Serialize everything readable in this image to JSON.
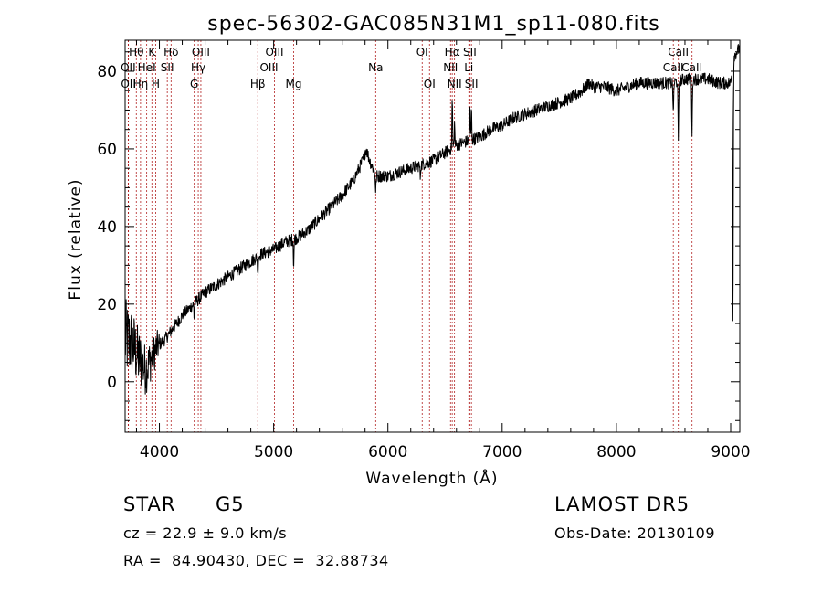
{
  "chart_data": {
    "type": "line",
    "title": "spec-56302-GAC085N31M1_sp11-080.fits",
    "xlabel": "Wavelength (Å)",
    "ylabel": "Flux (relative)",
    "xlim": [
      3700,
      9080
    ],
    "ylim": [
      -13,
      88
    ],
    "x_ticks": [
      4000,
      5000,
      6000,
      7000,
      8000,
      9000
    ],
    "y_ticks": [
      0,
      20,
      40,
      60,
      80
    ],
    "x_minor_step": 200,
    "y_minor_step": 5,
    "line_color": "#000000",
    "marker_color": "#b22222",
    "spectrum_anchors": [
      [
        3700,
        11
      ],
      [
        3760,
        10
      ],
      [
        3820,
        6
      ],
      [
        3880,
        3
      ],
      [
        3930,
        6
      ],
      [
        3980,
        9
      ],
      [
        4050,
        11
      ],
      [
        4100,
        13
      ],
      [
        4200,
        17
      ],
      [
        4300,
        20
      ],
      [
        4400,
        23
      ],
      [
        4500,
        25
      ],
      [
        4600,
        27
      ],
      [
        4700,
        29
      ],
      [
        4800,
        31
      ],
      [
        4900,
        33
      ],
      [
        5000,
        34
      ],
      [
        5100,
        36
      ],
      [
        5200,
        37
      ],
      [
        5300,
        39
      ],
      [
        5400,
        42
      ],
      [
        5500,
        45
      ],
      [
        5600,
        48
      ],
      [
        5700,
        52
      ],
      [
        5780,
        57
      ],
      [
        5810,
        60
      ],
      [
        5840,
        57
      ],
      [
        5900,
        53
      ],
      [
        6000,
        53
      ],
      [
        6100,
        54
      ],
      [
        6200,
        55
      ],
      [
        6300,
        56
      ],
      [
        6400,
        57
      ],
      [
        6500,
        59
      ],
      [
        6600,
        61
      ],
      [
        6700,
        62
      ],
      [
        6800,
        63
      ],
      [
        6900,
        65
      ],
      [
        7000,
        66
      ],
      [
        7100,
        68
      ],
      [
        7200,
        69
      ],
      [
        7300,
        70
      ],
      [
        7400,
        71
      ],
      [
        7500,
        72
      ],
      [
        7600,
        73
      ],
      [
        7700,
        75
      ],
      [
        7760,
        77
      ],
      [
        7800,
        76
      ],
      [
        7900,
        76
      ],
      [
        8000,
        75
      ],
      [
        8100,
        76
      ],
      [
        8200,
        77
      ],
      [
        8300,
        77
      ],
      [
        8400,
        77
      ],
      [
        8500,
        77
      ],
      [
        8600,
        78
      ],
      [
        8700,
        78
      ],
      [
        8800,
        78
      ],
      [
        8900,
        77
      ],
      [
        9000,
        77
      ],
      [
        9030,
        84
      ],
      [
        9080,
        86
      ]
    ],
    "spectrum_noise_amplitude": 1.6,
    "spectrum_noise_blue_amplitude": 9,
    "absorption_features": [
      [
        4305,
        4
      ],
      [
        4861,
        5
      ],
      [
        5175,
        7
      ],
      [
        5893,
        5
      ],
      [
        6283,
        3
      ],
      [
        6563,
        3
      ],
      [
        8498,
        9
      ],
      [
        8542,
        16
      ],
      [
        8662,
        14
      ],
      [
        9020,
        70
      ]
    ],
    "emission_features": [
      [
        6563,
        16
      ],
      [
        6583,
        6
      ],
      [
        6717,
        8
      ],
      [
        6731,
        8
      ]
    ],
    "line_markers": [
      {
        "label": "Hθ",
        "wavelength": 3798,
        "row": 0
      },
      {
        "label": "OII",
        "wavelength": 3727,
        "row": 1
      },
      {
        "label": "OII",
        "wavelength": 3729,
        "row": 2
      },
      {
        "label": "Hη",
        "wavelength": 3835,
        "row": 2
      },
      {
        "label": "K",
        "wavelength": 3934,
        "row": 0
      },
      {
        "label": "HeI",
        "wavelength": 3889,
        "row": 1
      },
      {
        "label": "H",
        "wavelength": 3968,
        "row": 2
      },
      {
        "label": "Hδ",
        "wavelength": 4102,
        "row": 0
      },
      {
        "label": "SII",
        "wavelength": 4069,
        "row": 1
      },
      {
        "label": "OIII",
        "wavelength": 4363,
        "row": 0
      },
      {
        "label": "Hγ",
        "wavelength": 4340,
        "row": 1
      },
      {
        "label": "G",
        "wavelength": 4305,
        "row": 2
      },
      {
        "label": "OIII",
        "wavelength": 5007,
        "row": 0
      },
      {
        "label": "OIII",
        "wavelength": 4959,
        "row": 1
      },
      {
        "label": "Hβ",
        "wavelength": 4861,
        "row": 2
      },
      {
        "label": "Mg",
        "wavelength": 5175,
        "row": 2
      },
      {
        "label": "Na",
        "wavelength": 5893,
        "row": 1
      },
      {
        "label": "OI",
        "wavelength": 6300,
        "row": 0
      },
      {
        "label": "OI",
        "wavelength": 6364,
        "row": 2
      },
      {
        "label": "Hα",
        "wavelength": 6563,
        "row": 0
      },
      {
        "label": "NII",
        "wavelength": 6548,
        "row": 1
      },
      {
        "label": "NII",
        "wavelength": 6583,
        "row": 2
      },
      {
        "label": "SII",
        "wavelength": 6717,
        "row": 0
      },
      {
        "label": "Li",
        "wavelength": 6708,
        "row": 1
      },
      {
        "label": "SII",
        "wavelength": 6731,
        "row": 2
      },
      {
        "label": "CaII",
        "wavelength": 8542,
        "row": 0
      },
      {
        "label": "CaII",
        "wavelength": 8498,
        "row": 1
      },
      {
        "label": "CaII",
        "wavelength": 8662,
        "row": 1
      }
    ]
  },
  "info": {
    "object_class": "STAR",
    "subclass": "G5",
    "survey": "LAMOST DR5",
    "redshift": "cz = 22.9 ± 9.0 km/s",
    "obs_date": "Obs-Date: 20130109",
    "coords": "RA =  84.90430, DEC =  32.88734"
  }
}
